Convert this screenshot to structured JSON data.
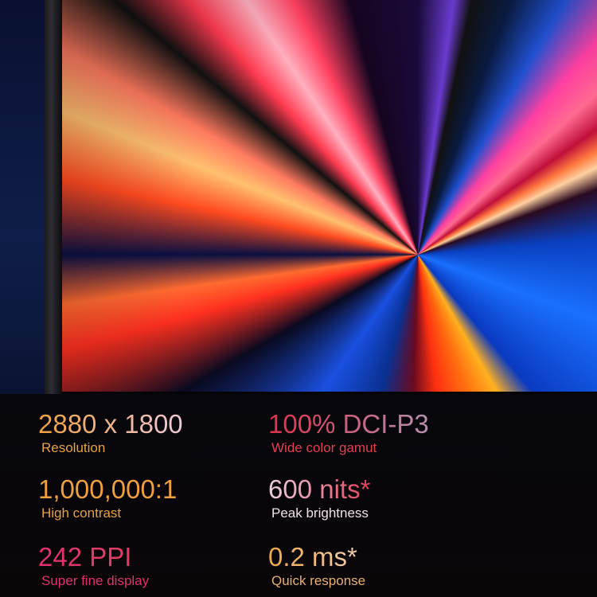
{
  "specs": [
    {
      "value": "2880 x 1800",
      "label": "Resolution",
      "gradient": [
        "#f0a040",
        "#f0c8d8"
      ],
      "label_color": "#e8a040"
    },
    {
      "value": "100% DCI-P3",
      "label": "Wide color gamut",
      "gradient": [
        "#e0304a",
        "#b890b0"
      ],
      "label_color": "#e04050"
    },
    {
      "value": "1,000,000:1",
      "label": "High contrast",
      "gradient": [
        "#f0a040",
        "#f0a040"
      ],
      "label_color": "#e8a040"
    },
    {
      "value": "600 nits*",
      "label": "Peak brightness",
      "gradient": [
        "#f0d0e0",
        "#e0405a"
      ],
      "label_color": "#f0e0e8"
    },
    {
      "value": "242 PPI",
      "label": "Super fine display",
      "gradient": [
        "#e03070",
        "#e04060"
      ],
      "label_color": "#e03070"
    },
    {
      "value": "0.2 ms*",
      "label": "Quick response",
      "gradient": [
        "#f0a848",
        "#f0d0b8"
      ],
      "label_color": "#e8b070"
    }
  ]
}
